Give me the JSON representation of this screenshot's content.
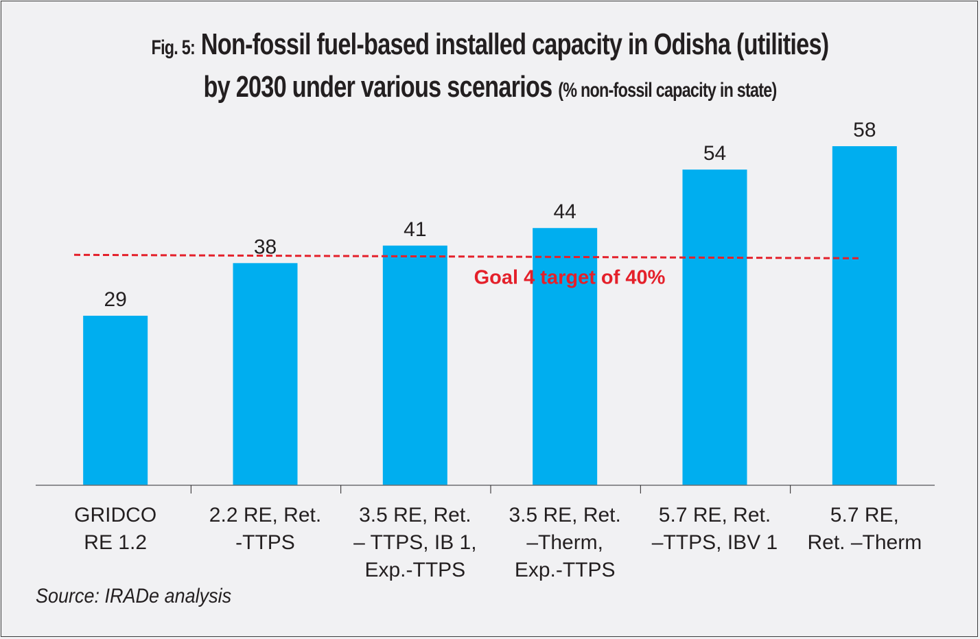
{
  "chart_data": {
    "type": "bar",
    "title_prefix": "Fig. 5:",
    "title_line1": "Non-fossil fuel-based installed capacity in Odisha (utilities)",
    "title_line2": "by 2030 under various scenarios",
    "title_suffix": "(% non-fossil capacity in state)",
    "categories": [
      [
        "GRIDCO",
        "RE 1.2"
      ],
      [
        "2.2 RE, Ret.",
        "-TTPS"
      ],
      [
        "3.5 RE, Ret.",
        "– TTPS, IB 1,",
        "Exp.-TTPS"
      ],
      [
        "3.5 RE, Ret.",
        "–Therm,",
        "Exp.-TTPS"
      ],
      [
        "5.7 RE, Ret.",
        "–TTPS, IBV 1"
      ],
      [
        "5.7 RE,",
        "Ret. –Therm"
      ]
    ],
    "values": [
      29,
      38,
      41,
      44,
      54,
      58
    ],
    "data_labels": [
      "29",
      "38",
      "41",
      "44",
      "54",
      "58"
    ],
    "bar_color": "#00aeef",
    "target_line": {
      "value": 40,
      "label": "Goal 4 target of 40%",
      "color": "#e4202a",
      "style": "dashed"
    },
    "xlabel": "",
    "ylabel": "",
    "ylim": [
      0,
      58
    ],
    "grid": false,
    "legend": "none",
    "source": "Source: IRADe analysis"
  }
}
